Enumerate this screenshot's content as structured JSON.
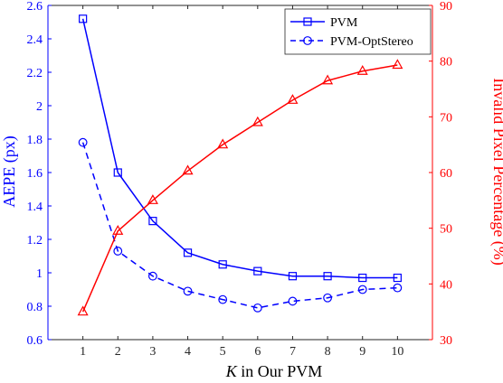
{
  "chart_data": {
    "type": "line",
    "xlabel_italic": "K",
    "xlabel_rest": " in Our PVM",
    "ylabel_left": "AEPE (px)",
    "ylabel_right": "Invalid Pixel Percentage (%)",
    "x": [
      1,
      2,
      3,
      4,
      5,
      6,
      7,
      8,
      9,
      10
    ],
    "xlim": [
      0,
      11
    ],
    "ylim_left": [
      0.6,
      2.6
    ],
    "ylim_right": [
      30,
      90
    ],
    "yticks_left": [
      "0.6",
      "0.8",
      "1",
      "1.2",
      "1.4",
      "1.6",
      "1.8",
      "2",
      "2.2",
      "2.4",
      "2.6"
    ],
    "yticks_right": [
      "30",
      "40",
      "50",
      "60",
      "70",
      "80",
      "90"
    ],
    "xticks": [
      "1",
      "2",
      "3",
      "4",
      "5",
      "6",
      "7",
      "8",
      "9",
      "10"
    ],
    "legend_position": "top-right",
    "series": [
      {
        "name": "PVM",
        "axis": "left",
        "color": "#0000ff",
        "marker": "square",
        "dash": "solid",
        "values": [
          2.52,
          1.6,
          1.31,
          1.12,
          1.05,
          1.01,
          0.98,
          0.98,
          0.97,
          0.97
        ]
      },
      {
        "name": "PVM-OptStereo",
        "axis": "left",
        "color": "#0000ff",
        "marker": "circle",
        "dash": "dashed",
        "values": [
          1.78,
          1.13,
          0.98,
          0.89,
          0.84,
          0.79,
          0.83,
          0.85,
          0.9,
          0.91
        ]
      },
      {
        "name": "",
        "axis": "right",
        "color": "#ff0000",
        "marker": "triangle",
        "dash": "solid",
        "values": [
          35,
          49.5,
          55,
          60.3,
          65,
          69,
          73,
          76.5,
          78.2,
          79.3
        ]
      }
    ]
  }
}
